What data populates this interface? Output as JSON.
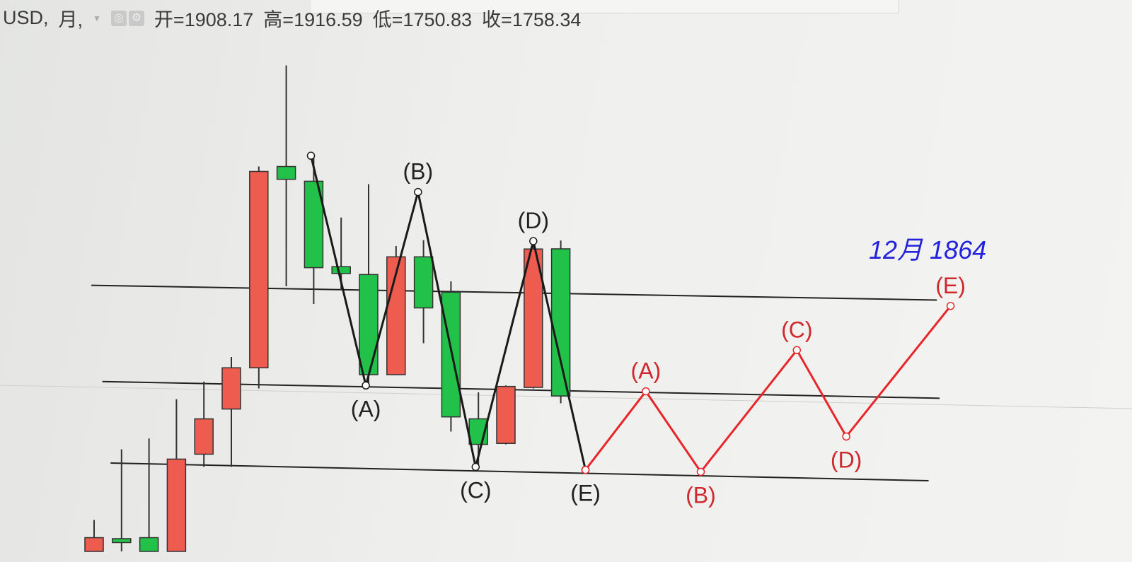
{
  "header": {
    "symbol": "USD,",
    "period": "月,",
    "open": "开=1908.17",
    "high": "高=1916.59",
    "low": "低=1750.83",
    "close": "收=1758.34",
    "icons": [
      "settings-icon",
      "gear-icon"
    ]
  },
  "chart_data": {
    "type": "candlestick",
    "colors": {
      "up": "#ee5b4f",
      "down": "#22c24a",
      "wave": "#1a1a1a",
      "forecast": "#e8262a",
      "annotation": "#2222dd"
    },
    "candles": [
      {
        "o": 1600,
        "h": 1632,
        "l": 1600,
        "c": 1614
      },
      {
        "o": 1613,
        "h": 1704,
        "l": 1600,
        "c": 1609
      },
      {
        "o": 1614,
        "h": 1715,
        "l": 1600,
        "c": 1600
      },
      {
        "o": 1600,
        "h": 1755,
        "l": 1600,
        "c": 1694
      },
      {
        "o": 1699,
        "h": 1773,
        "l": 1686,
        "c": 1735
      },
      {
        "o": 1745,
        "h": 1798,
        "l": 1686,
        "c": 1787
      },
      {
        "o": 1787,
        "h": 1992,
        "l": 1766,
        "c": 1987
      },
      {
        "o": 1992,
        "h": 2095,
        "l": 1870,
        "c": 1979
      },
      {
        "o": 1977,
        "h": 2002,
        "l": 1852,
        "c": 1889
      },
      {
        "o": 1890,
        "h": 1940,
        "l": 1866,
        "c": 1883
      },
      {
        "o": 1882,
        "h": 1974,
        "l": 1769,
        "c": 1780
      },
      {
        "o": 1780,
        "h": 1911,
        "l": 1780,
        "c": 1900
      },
      {
        "o": 1900,
        "h": 1917,
        "l": 1812,
        "c": 1848
      },
      {
        "o": 1864,
        "h": 1875,
        "l": 1722,
        "c": 1737
      },
      {
        "o": 1735,
        "h": 1762,
        "l": 1686,
        "c": 1709
      },
      {
        "o": 1710,
        "h": 1769,
        "l": 1709,
        "c": 1768
      },
      {
        "o": 1767,
        "h": 1917,
        "l": 1766,
        "c": 1908
      },
      {
        "o": 1908.17,
        "h": 1916.59,
        "l": 1750.83,
        "c": 1758.34
      }
    ],
    "trendlines": [
      {
        "from": [
          -0.1,
          1871
        ],
        "to": [
          30.7,
          1856
        ]
      },
      {
        "from": [
          0.3,
          1773
        ],
        "to": [
          30.8,
          1756
        ]
      },
      {
        "from": [
          0.6,
          1690
        ],
        "to": [
          30.4,
          1672
        ]
      }
    ],
    "wave": [
      {
        "i": 7.9,
        "p": 2003,
        "label": ""
      },
      {
        "i": 9.9,
        "p": 1769,
        "label": "(A)"
      },
      {
        "i": 11.8,
        "p": 1966,
        "label": "(B)"
      },
      {
        "i": 13.9,
        "p": 1686,
        "label": "(C)"
      },
      {
        "i": 16,
        "p": 1916,
        "label": "(D)"
      },
      {
        "i": 17.9,
        "p": 1683,
        "label": "(E)"
      }
    ],
    "forecast": [
      {
        "i": 17.9,
        "p": 1683,
        "label": ""
      },
      {
        "i": 20.1,
        "p": 1763,
        "label": "(A)"
      },
      {
        "i": 22.1,
        "p": 1681,
        "label": "(B)"
      },
      {
        "i": 25.6,
        "p": 1805,
        "label": "(C)"
      },
      {
        "i": 27.4,
        "p": 1717,
        "label": "(D)"
      },
      {
        "i": 31.2,
        "p": 1850,
        "label": "(E)"
      }
    ],
    "annotation": "12月 1864"
  }
}
